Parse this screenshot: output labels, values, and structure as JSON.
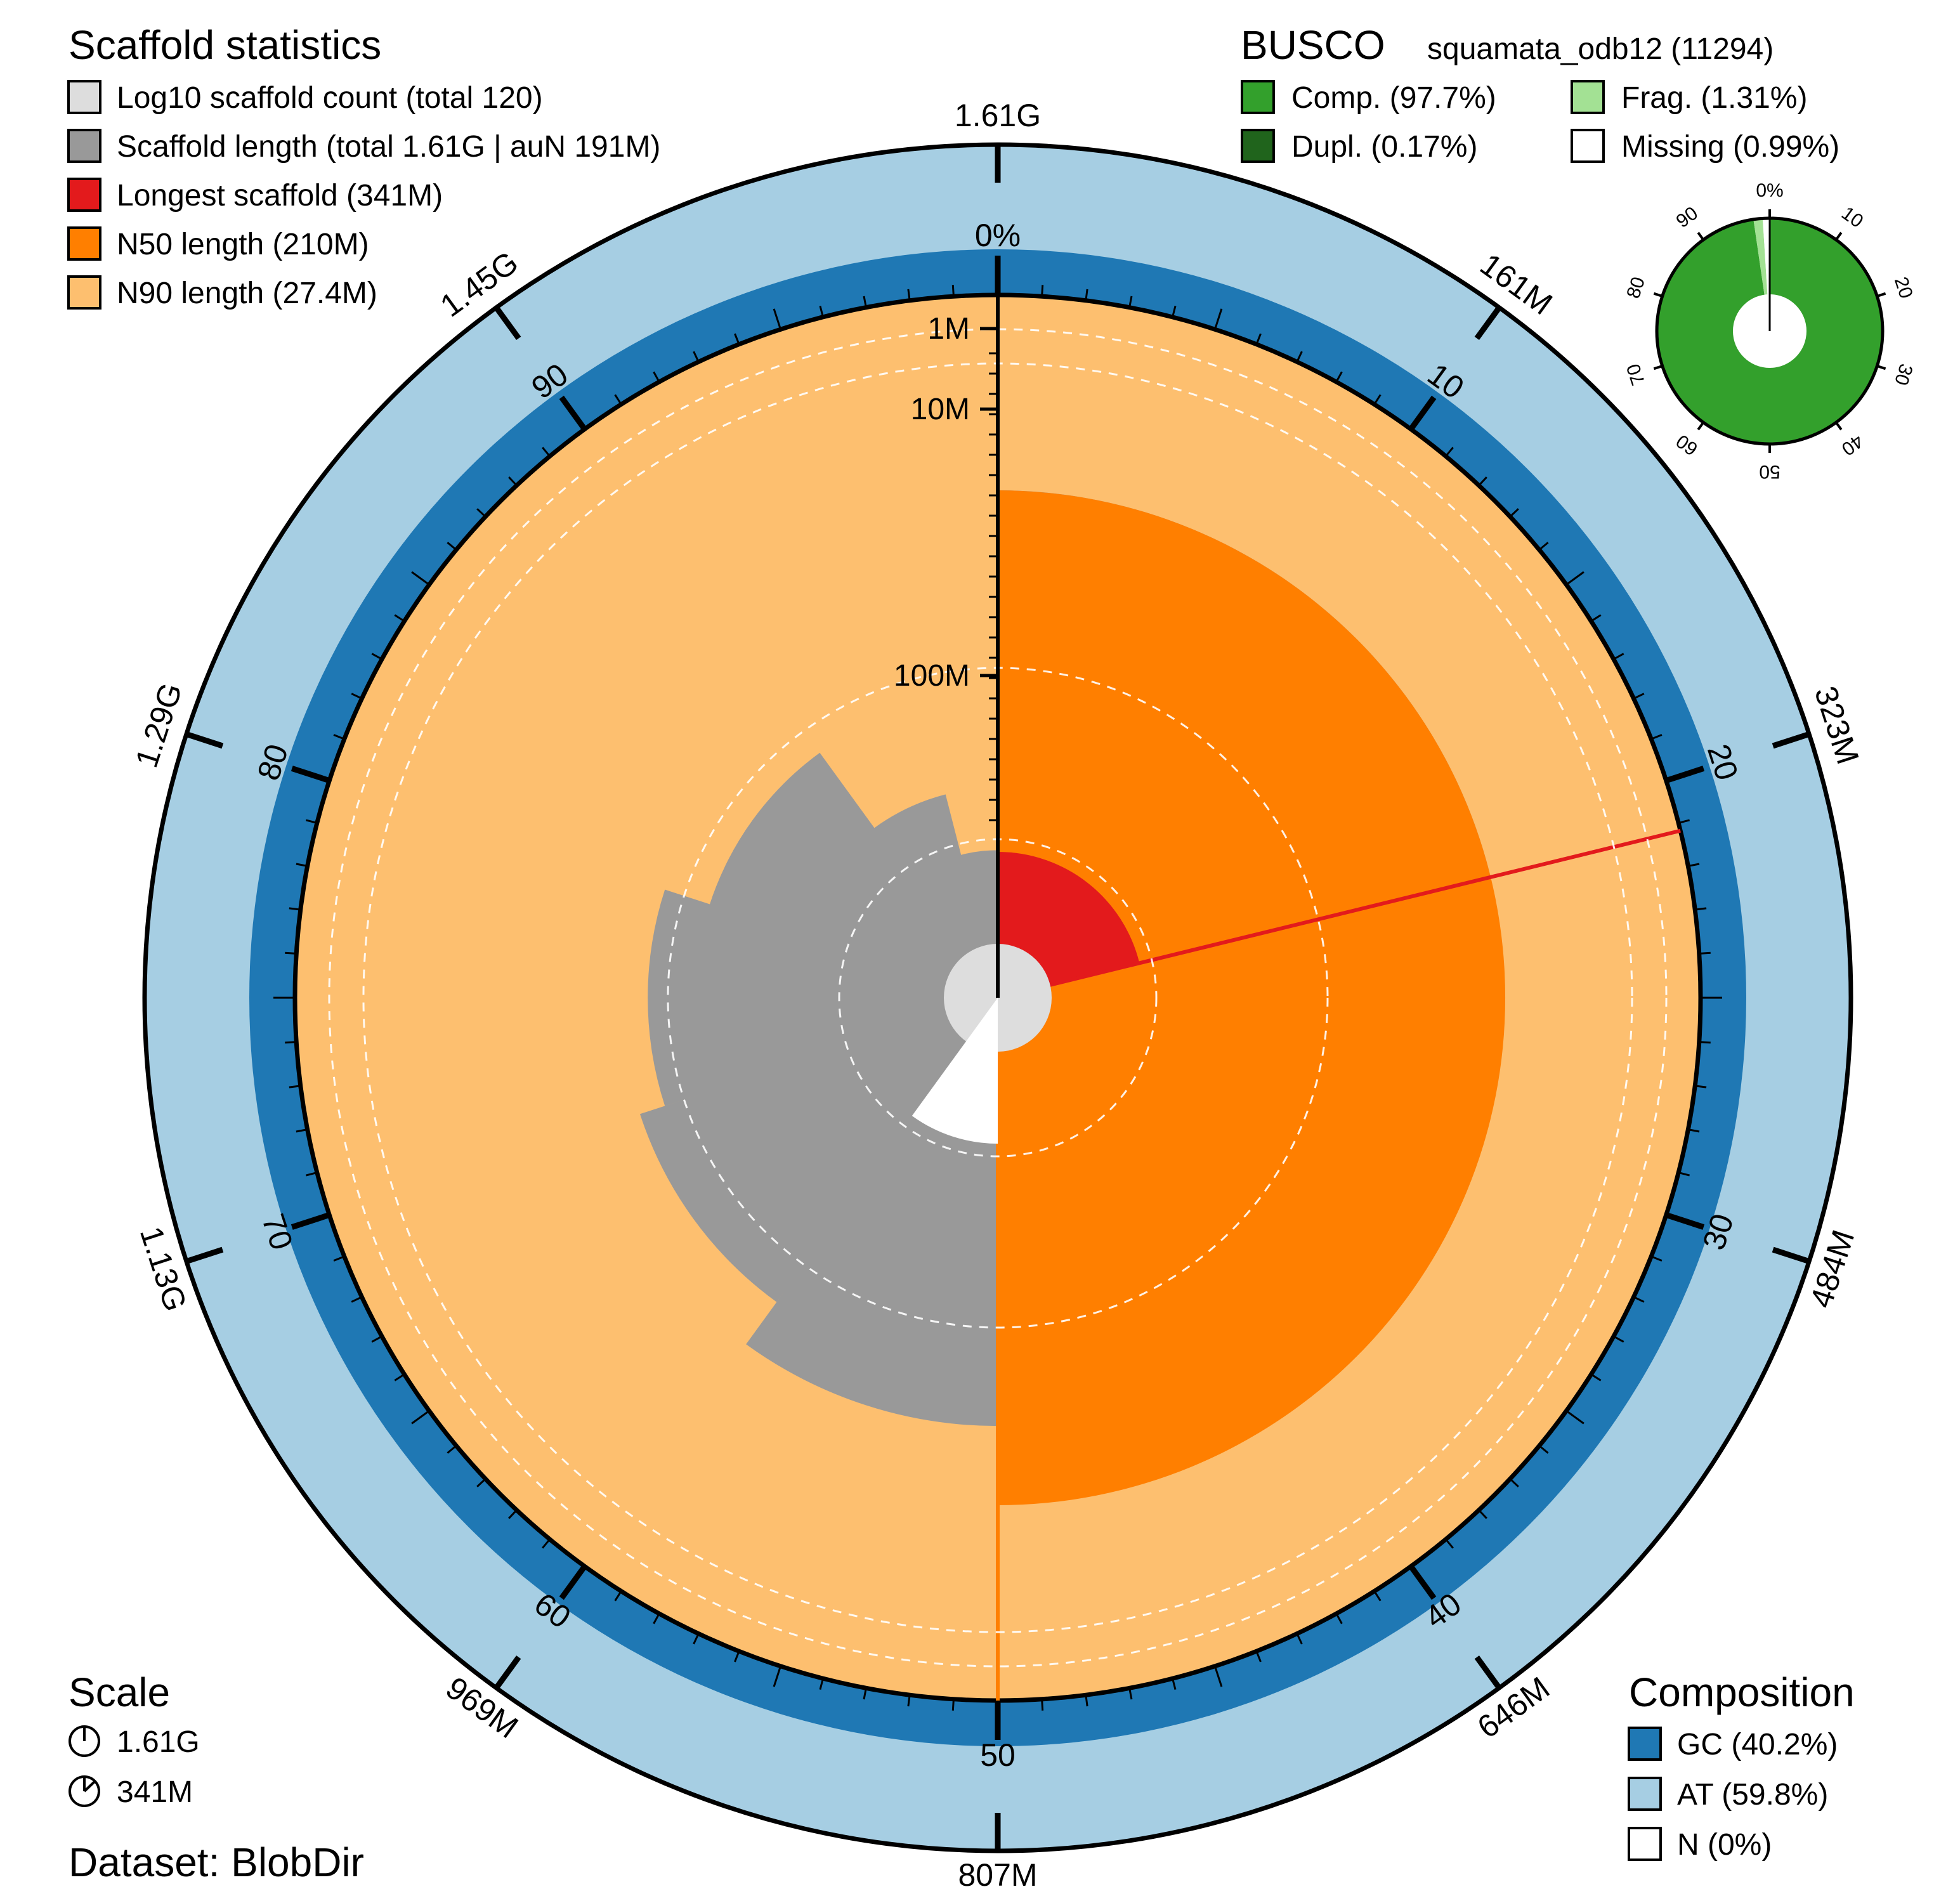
{
  "chart_data": {
    "type": "snail",
    "assembly": {
      "total_length": "1.61G",
      "scaffold_count_total": 120,
      "longest_scaffold": "341M",
      "n50": "210M",
      "n90": "27.4M",
      "auN": "191M"
    },
    "scaffold_statistics": {
      "title": "Scaffold statistics",
      "items": [
        {
          "label": "Log10 scaffold count (total 120)",
          "color": "#dddddd"
        },
        {
          "label": "Scaffold length (total 1.61G | auN 191M)",
          "color": "#999999"
        },
        {
          "label": "Longest scaffold (341M)",
          "color": "#e31a1c"
        },
        {
          "label": "N50 length (210M)",
          "color": "#ff7f00"
        },
        {
          "label": "N90 length (27.4M)",
          "color": "#fdbf6f"
        }
      ]
    },
    "busco": {
      "title": "BUSCO",
      "lineage": "squamata_odb12 (11294)",
      "items": [
        {
          "label": "Comp. (97.7%)",
          "color": "#33a02c"
        },
        {
          "label": "Frag. (1.31%)",
          "color": "#a3e194"
        },
        {
          "label": "Dupl. (0.17%)",
          "color": "#20641c"
        },
        {
          "label": "Missing (0.99%)",
          "color": "#ffffff"
        }
      ],
      "complete_pct": 97.7,
      "fragmented_pct": 1.31,
      "duplicated_pct": 0.17,
      "missing_pct": 0.99,
      "ticks": [
        "0%",
        "10",
        "20",
        "30",
        "40",
        "50",
        "60",
        "70",
        "80",
        "90"
      ]
    },
    "composition": {
      "title": "Composition",
      "items": [
        {
          "label": "GC (40.2%)",
          "color": "#1f78b4"
        },
        {
          "label": "AT (59.8%)",
          "color": "#a6cee3"
        },
        {
          "label": "N (0%)",
          "color": "#ffffff"
        }
      ],
      "gc_pct": 40.2
    },
    "scale": {
      "title": "Scale",
      "items": [
        {
          "label": "1.61G"
        },
        {
          "label": "341M"
        }
      ]
    },
    "dataset": "Dataset: BlobDir",
    "outer_length_ticks": [
      "1.61G",
      "161M",
      "323M",
      "484M",
      "646M",
      "807M",
      "969M",
      "1.13G",
      "1.29G",
      "1.45G"
    ],
    "percent_ticks": [
      "0%",
      "10",
      "20",
      "30",
      "40",
      "50",
      "60",
      "70",
      "80",
      "90"
    ],
    "radial_axis_labels": [
      "1M",
      "10M",
      "100M"
    ],
    "longest_scaffold_fraction": 0.2118,
    "n50_fraction": 0.5,
    "n90_fraction": 0.9,
    "scaffold_length_profile": [
      {
        "pct": 0,
        "length_m": 341
      },
      {
        "pct": 21.2,
        "length_m": 341
      },
      {
        "pct": 21.2,
        "length_m": 230
      },
      {
        "pct": 35,
        "length_m": 222
      },
      {
        "pct": 50,
        "length_m": 210
      },
      {
        "pct": 60,
        "length_m": 145
      },
      {
        "pct": 70,
        "length_m": 118
      },
      {
        "pct": 80,
        "length_m": 78
      },
      {
        "pct": 90,
        "length_m": 27.4
      },
      {
        "pct": 96,
        "length_m": 10
      },
      {
        "pct": 100,
        "length_m": 1
      }
    ],
    "log_count_profile": [
      {
        "pct": 0,
        "count": 1
      },
      {
        "pct": 30,
        "count": 4
      },
      {
        "pct": 50,
        "count": 7
      },
      {
        "pct": 70,
        "count": 12
      },
      {
        "pct": 90,
        "count": 22
      },
      {
        "pct": 100,
        "count": 120
      }
    ]
  }
}
